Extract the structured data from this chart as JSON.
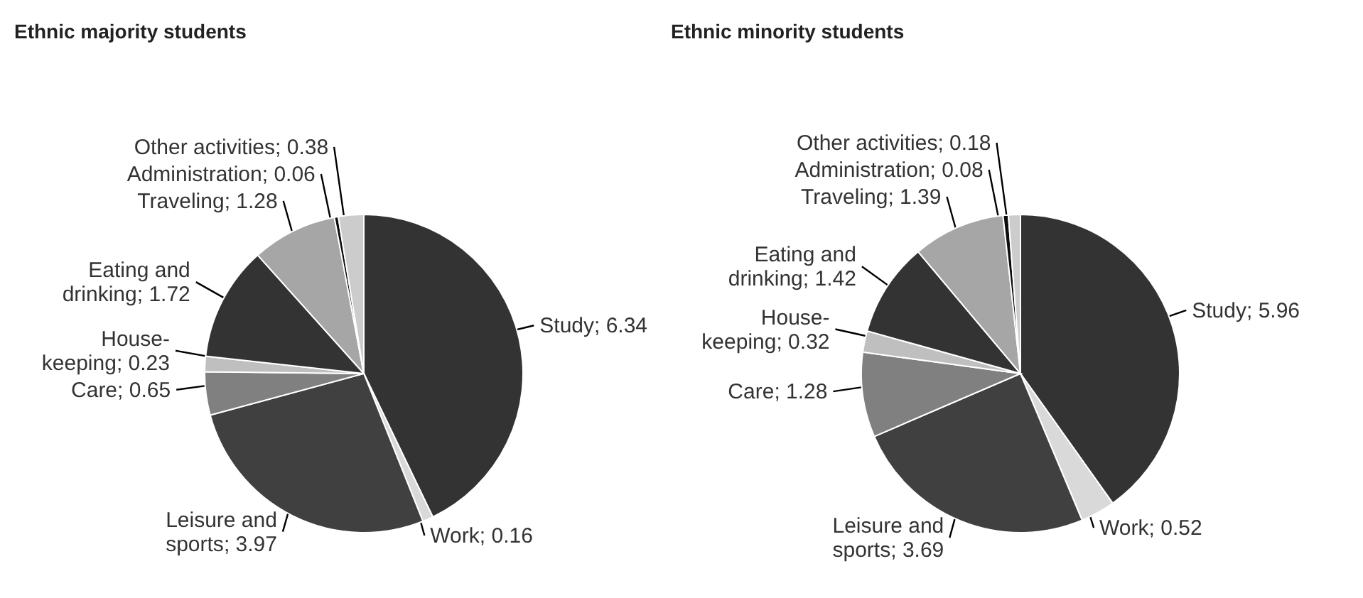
{
  "chart_data": [
    {
      "type": "pie",
      "title": "Ethnic majority students",
      "categories": [
        "Study",
        "Work",
        "Leisure and sports",
        "Care",
        "House-keeping",
        "Eating and drinking",
        "Traveling",
        "Administration",
        "Other activities"
      ],
      "values": [
        6.34,
        0.16,
        3.97,
        0.65,
        0.23,
        1.72,
        1.28,
        0.06,
        0.38
      ],
      "colors": [
        "#333333",
        "#d9d9d9",
        "#404040",
        "#808080",
        "#bfbfbf",
        "#333333",
        "#a6a6a6",
        "#0d0d0d",
        "#cccccc"
      ],
      "value_labels": [
        "; 6.34",
        "; 0.16",
        "; 3.97",
        "; 0.65",
        "; 0.23",
        "; 1.72",
        "; 1.28",
        "; 0.06",
        "; 0.38"
      ]
    },
    {
      "type": "pie",
      "title": "Ethnic minority students",
      "categories": [
        "Study",
        "Work",
        "Leisure and sports",
        "Care",
        "House-keeping",
        "Eating and drinking",
        "Traveling",
        "Administration",
        "Other activities"
      ],
      "values": [
        5.96,
        0.52,
        3.69,
        1.28,
        0.32,
        1.42,
        1.39,
        0.08,
        0.18
      ],
      "colors": [
        "#333333",
        "#d9d9d9",
        "#404040",
        "#808080",
        "#bfbfbf",
        "#333333",
        "#a6a6a6",
        "#0d0d0d",
        "#cccccc"
      ],
      "value_labels": [
        "; 5.96",
        "; 0.52",
        "; 3.69",
        "; 1.28",
        "; 0.32",
        "; 1.42",
        "; 1.39",
        "; 0.08",
        "; 0.18"
      ]
    }
  ]
}
